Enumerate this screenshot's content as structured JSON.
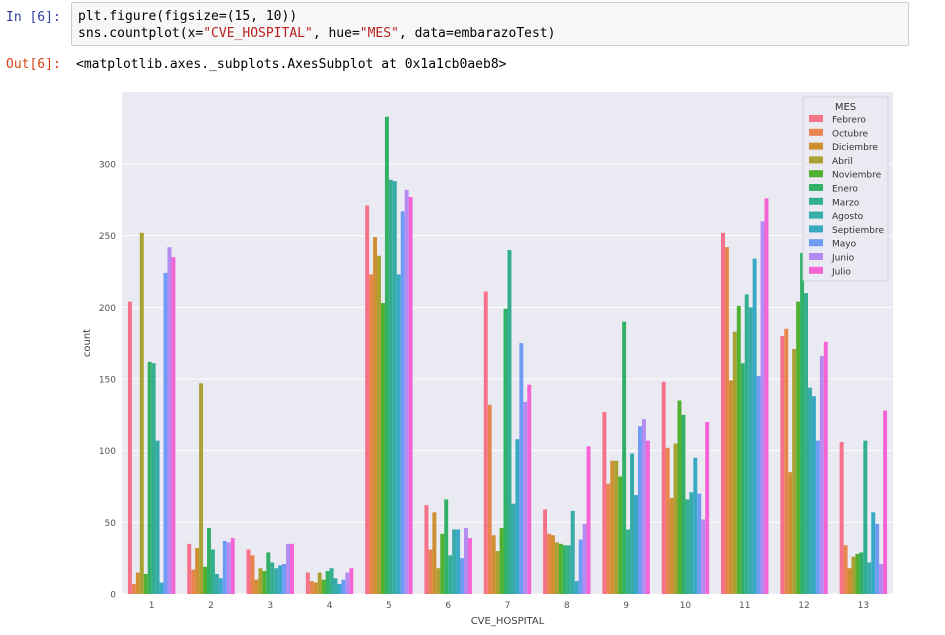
{
  "cell": {
    "in_prompt": "In [6]:",
    "code": {
      "line1": "plt.figure(figsize=(15, 10))",
      "line2_prefix": "sns.countplot(x=",
      "line2_x": "\"CVE_HOSPITAL\"",
      "line2_mid": ", hue=",
      "line2_hue": "\"MES\"",
      "line2_suffix": ", data=embarazoTest)"
    },
    "out_prompt": "Out[6]:",
    "output_text": "<matplotlib.axes._subplots.AxesSubplot at 0x1a1cb0aeb8>"
  },
  "chart_data": {
    "type": "bar",
    "xlabel": "CVE_HOSPITAL",
    "ylabel": "count",
    "ylim": [
      0,
      340
    ],
    "yticks": [
      0,
      50,
      100,
      150,
      200,
      250,
      300
    ],
    "grid": true,
    "legend_position": "top-right",
    "legend_title": "MES",
    "categories": [
      "1",
      "2",
      "3",
      "4",
      "5",
      "6",
      "7",
      "8",
      "9",
      "10",
      "11",
      "12",
      "13"
    ],
    "series": [
      {
        "name": "Febrero",
        "color": "#f77189",
        "values": [
          204,
          35,
          31,
          15,
          271,
          62,
          211,
          59,
          127,
          148,
          252,
          180,
          106
        ]
      },
      {
        "name": "Octubre",
        "color": "#e8854f",
        "values": [
          7,
          17,
          27,
          9,
          223,
          31,
          132,
          42,
          77,
          102,
          242,
          185,
          34
        ]
      },
      {
        "name": "Diciembre",
        "color": "#ce9032",
        "values": [
          15,
          32,
          10,
          8,
          249,
          57,
          41,
          41,
          93,
          67,
          149,
          85,
          18
        ]
      },
      {
        "name": "Abril",
        "color": "#a9a232",
        "values": [
          252,
          147,
          18,
          15,
          236,
          18,
          30,
          36,
          93,
          105,
          183,
          171,
          26
        ]
      },
      {
        "name": "Noviembre",
        "color": "#50b131",
        "values": [
          14,
          19,
          16,
          10,
          203,
          42,
          46,
          35,
          82,
          135,
          201,
          204,
          28
        ]
      },
      {
        "name": "Enero",
        "color": "#32b166",
        "values": [
          162,
          46,
          29,
          16,
          333,
          66,
          199,
          34,
          190,
          125,
          161,
          238,
          29
        ]
      },
      {
        "name": "Marzo",
        "color": "#34ae91",
        "values": [
          161,
          31,
          22,
          18,
          289,
          27,
          240,
          34,
          45,
          66,
          209,
          210,
          107
        ]
      },
      {
        "name": "Agosto",
        "color": "#36abaa",
        "values": [
          107,
          14,
          18,
          11,
          288,
          45,
          63,
          58,
          98,
          71,
          200,
          144,
          22
        ]
      },
      {
        "name": "Septiembre",
        "color": "#38a9c5",
        "values": [
          8,
          11,
          20,
          7,
          223,
          45,
          108,
          9,
          69,
          95,
          234,
          138,
          57
        ]
      },
      {
        "name": "Mayo",
        "color": "#6e9bf4",
        "values": [
          224,
          37,
          21,
          10,
          267,
          25,
          175,
          38,
          117,
          70,
          152,
          107,
          49
        ]
      },
      {
        "name": "Junio",
        "color": "#b38bf3",
        "values": [
          242,
          36,
          35,
          15,
          282,
          46,
          134,
          49,
          122,
          52,
          260,
          166,
          21
        ]
      },
      {
        "name": "Julio",
        "color": "#f564d4",
        "values": [
          235,
          39,
          35,
          18,
          277,
          39,
          146,
          103,
          107,
          120,
          276,
          176,
          128
        ]
      }
    ]
  }
}
